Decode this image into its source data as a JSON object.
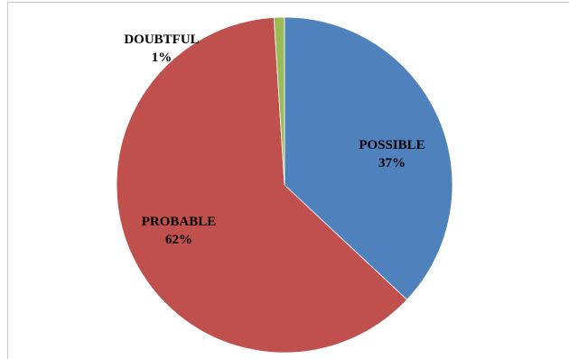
{
  "chart_data": {
    "type": "pie",
    "title": "",
    "slices": [
      {
        "label": "POSSIBLE",
        "value": 37,
        "percent_label": "37%",
        "color": "#4F81BD"
      },
      {
        "label": "PROBABLE",
        "value": 62,
        "percent_label": "62%",
        "color": "#C0504D"
      },
      {
        "label": "DOUBTFUL",
        "value": 1,
        "percent_label": "1%",
        "color": "#9BBB59"
      }
    ],
    "start_angle_deg": 0,
    "direction": "clockwise",
    "legend": "none"
  }
}
